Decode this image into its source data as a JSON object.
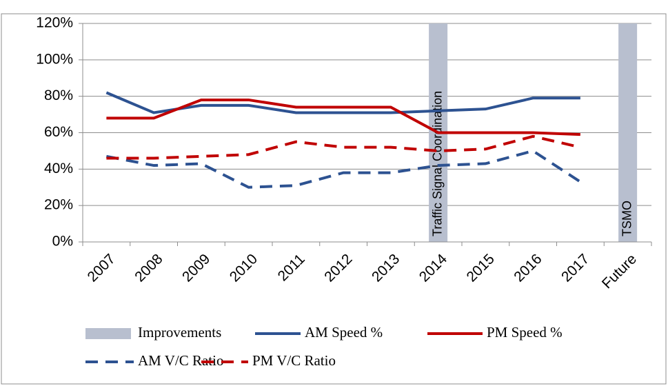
{
  "chart_data": {
    "type": "line",
    "categories": [
      "2007",
      "2008",
      "2009",
      "2010",
      "2011",
      "2012",
      "2013",
      "2014",
      "2015",
      "2016",
      "2017",
      "Future"
    ],
    "series": [
      {
        "name": "Improvements",
        "type": "bar",
        "color": "#b8bfcf",
        "values": [
          null,
          null,
          null,
          null,
          null,
          null,
          null,
          120,
          null,
          null,
          null,
          120
        ]
      },
      {
        "name": "AM Speed %",
        "type": "line",
        "color": "#2d5291",
        "dashed": false,
        "values": [
          82,
          71,
          75,
          75,
          71,
          71,
          71,
          72,
          73,
          79,
          79,
          null
        ]
      },
      {
        "name": "PM Speed %",
        "type": "line",
        "color": "#c00000",
        "dashed": false,
        "values": [
          68,
          68,
          78,
          78,
          74,
          74,
          74,
          60,
          60,
          60,
          59,
          null
        ]
      },
      {
        "name": "AM V/C Ratio",
        "type": "line",
        "color": "#2d5291",
        "dashed": true,
        "values": [
          47,
          42,
          43,
          30,
          31,
          38,
          38,
          42,
          43,
          50,
          33,
          null
        ]
      },
      {
        "name": "PM V/C Ratio",
        "type": "line",
        "color": "#c00000",
        "dashed": true,
        "values": [
          46,
          46,
          47,
          48,
          55,
          52,
          52,
          50,
          51,
          58,
          52,
          null
        ]
      }
    ],
    "annotations": [
      {
        "text": "Traffic Signal Coordination",
        "category": "2014"
      },
      {
        "text": "TSMO",
        "category": "Future"
      }
    ],
    "ylim": [
      0,
      120
    ],
    "yticks": [
      {
        "value": 0,
        "label": "0%"
      },
      {
        "value": 20,
        "label": "20%"
      },
      {
        "value": 40,
        "label": "40%"
      },
      {
        "value": 60,
        "label": "60%"
      },
      {
        "value": 80,
        "label": "80%"
      },
      {
        "value": 100,
        "label": "100%"
      },
      {
        "value": 120,
        "label": "120%"
      }
    ],
    "grid": true,
    "legend": "bottom"
  }
}
